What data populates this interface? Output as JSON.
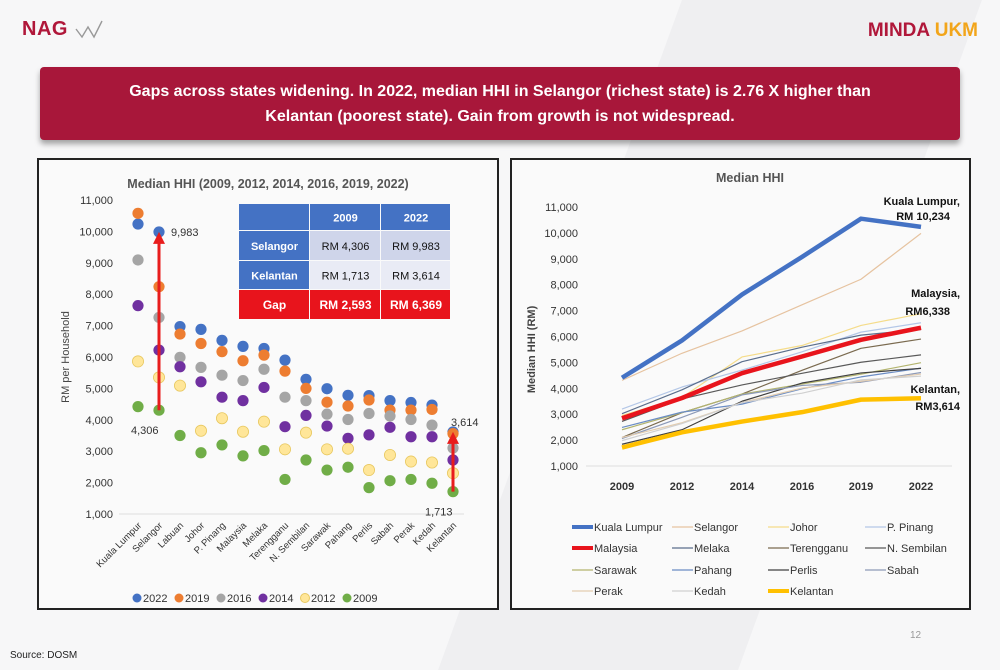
{
  "header": {
    "logo_left": "NAG",
    "logo_right_1": "MINDA",
    "logo_right_2": "UKM",
    "banner_text": "Gaps across states widening. In 2022, median HHI in Selangor (richest state) is 2.76 X higher than Kelantan (poorest state). Gain from growth is not widespread.",
    "banner_color": "#a8173a"
  },
  "footer": {
    "source": "Source: DOSM",
    "page_number": "12"
  },
  "chart_data": [
    {
      "type": "scatter",
      "title": "Median HHI (2009, 2012, 2014, 2016, 2019, 2022)",
      "ylabel": "RM per Household",
      "xlabel": "",
      "ylim": [
        1000,
        11000
      ],
      "yticks": [
        "1,000",
        "2,000",
        "3,000",
        "4,000",
        "5,000",
        "6,000",
        "7,000",
        "8,000",
        "9,000",
        "10,000",
        "11,000"
      ],
      "legend_position": "bottom",
      "categories": [
        "Kuala Lumpur",
        "Selangor",
        "Labuan",
        "Johor",
        "P. Pinang",
        "Malaysia",
        "Melaka",
        "Terengganu",
        "N. Sembilan",
        "Sarawak",
        "Pahang",
        "Perlis",
        "Sabah",
        "Perak",
        "Kedah",
        "Kelantan"
      ],
      "series": [
        {
          "name": "2022",
          "color": "#4472c4",
          "values": [
            10234,
            9983,
            6970,
            6880,
            6530,
            6338,
            6270,
            5900,
            5290,
            4990,
            4780,
            4770,
            4610,
            4550,
            4470,
            3614
          ]
        },
        {
          "name": "2019",
          "color": "#ed7d31",
          "values": [
            10575,
            8240,
            6730,
            6430,
            6170,
            5880,
            6060,
            5550,
            5000,
            4560,
            4440,
            4630,
            4310,
            4310,
            4330,
            3560
          ]
        },
        {
          "name": "2016",
          "color": "#a5a5a5",
          "values": [
            9090,
            7260,
            5990,
            5670,
            5420,
            5250,
            5610,
            4720,
            4610,
            4180,
            4010,
            4200,
            4120,
            4010,
            3830,
            3100
          ]
        },
        {
          "name": "2014",
          "color": "#7030a0",
          "values": [
            7635,
            6220,
            5690,
            5210,
            4720,
            4610,
            5030,
            3780,
            4140,
            3800,
            3410,
            3520,
            3760,
            3460,
            3460,
            2720
          ]
        },
        {
          "name": "2012",
          "color": "#ffe699",
          "values": [
            5860,
            5350,
            5090,
            3650,
            4050,
            3620,
            3940,
            3060,
            3590,
            3060,
            3080,
            2400,
            2880,
            2670,
            2640,
            2300
          ]
        },
        {
          "name": "2009",
          "color": "#70ad47",
          "values": [
            4420,
            4306,
            3500,
            2950,
            3200,
            2850,
            3020,
            2100,
            2720,
            2400,
            2490,
            1840,
            2060,
            2100,
            1980,
            1713
          ]
        }
      ],
      "annotations": [
        {
          "text": "9,983",
          "category": "Selangor",
          "value": 9983
        },
        {
          "text": "4,306",
          "category": "Selangor",
          "value": 4306
        },
        {
          "text": "3,614",
          "category": "Kelantan",
          "value": 3614
        },
        {
          "text": "1,713",
          "category": "Kelantan",
          "value": 1713
        }
      ],
      "arrows": [
        {
          "category": "Selangor",
          "from": 4306,
          "to": 9983,
          "color": "#e81c1c"
        },
        {
          "category": "Kelantan",
          "from": 1713,
          "to": 3614,
          "color": "#e81c1c"
        }
      ],
      "table": {
        "header": [
          "",
          "2009",
          "2022"
        ],
        "rows": [
          [
            "Selangor",
            "RM 4,306",
            "RM 9,983"
          ],
          [
            "Kelantan",
            "RM 1,713",
            "RM 3,614"
          ],
          [
            "Gap",
            "RM 2,593",
            "RM 6,369"
          ]
        ],
        "header_color": "#4472c4",
        "gap_color": "#e8141c"
      }
    },
    {
      "type": "line",
      "title": "Median HHI",
      "ylabel": "Median HHI (RM)",
      "xlabel": "",
      "ylim": [
        1000,
        11000
      ],
      "yticks": [
        "1,000",
        "2,000",
        "3,000",
        "4,000",
        "5,000",
        "6,000",
        "7,000",
        "8,000",
        "9,000",
        "10,000",
        "11,000"
      ],
      "x": [
        "2009",
        "2012",
        "2014",
        "2016",
        "2019",
        "2022"
      ],
      "legend_position": "bottom",
      "series": [
        {
          "name": "Kuala Lumpur",
          "color": "#4472c4",
          "highlight": true,
          "values": [
            4407,
            5847,
            7620,
            9073,
            10549,
            10234
          ]
        },
        {
          "name": "Selangor",
          "color": "#e6c3a0",
          "values": [
            4306,
            5353,
            6214,
            7225,
            8210,
            9983
          ]
        },
        {
          "name": "Johor",
          "color": "#f5dc8a",
          "values": [
            2950,
            3650,
            5210,
            5652,
            6427,
            6880
          ]
        },
        {
          "name": "P. Pinang",
          "color": "#b4c7e7",
          "values": [
            3200,
            4050,
            4702,
            5409,
            6169,
            6530
          ]
        },
        {
          "name": "Malaysia",
          "color": "#e8141c",
          "highlight": true,
          "values": [
            2841,
            3626,
            4585,
            5228,
            5873,
            6338
          ]
        },
        {
          "name": "Melaka",
          "color": "#5b6e8c",
          "values": [
            3020,
            3940,
            5029,
            5588,
            6054,
            6270
          ]
        },
        {
          "name": "Terengganu",
          "color": "#7a6a4f",
          "values": [
            2100,
            3060,
            3777,
            4694,
            5545,
            5900
          ]
        },
        {
          "name": "N. Sembilan",
          "color": "#595959",
          "values": [
            2720,
            3590,
            4129,
            4579,
            5005,
            5290
          ]
        },
        {
          "name": "Sarawak",
          "color": "#b3b46e",
          "values": [
            2400,
            3060,
            3778,
            4163,
            4544,
            4990
          ]
        },
        {
          "name": "Pahang",
          "color": "#6a8cc4",
          "values": [
            2490,
            3080,
            3389,
            3979,
            4440,
            4780
          ]
        },
        {
          "name": "Perlis",
          "color": "#404040",
          "values": [
            1840,
            2400,
            3500,
            4204,
            4594,
            4770
          ]
        },
        {
          "name": "Sabah",
          "color": "#8d9ab8",
          "values": [
            2060,
            2880,
            3745,
            4110,
            4235,
            4610
          ]
        },
        {
          "name": "Perak",
          "color": "#e3cdb0",
          "values": [
            2100,
            2670,
            3451,
            4006,
            4273,
            4550
          ]
        },
        {
          "name": "Kedah",
          "color": "#d0d0d0",
          "values": [
            1980,
            2640,
            3451,
            3811,
            4325,
            4470
          ]
        },
        {
          "name": "Kelantan",
          "color": "#ffc000",
          "highlight": true,
          "values": [
            1713,
            2300,
            2716,
            3079,
            3563,
            3614
          ]
        }
      ],
      "annotations": [
        {
          "line1": "Kuala Lumpur,",
          "line2": "RM 10,234",
          "series": "Kuala Lumpur"
        },
        {
          "line1": "Malaysia,",
          "line2": "RM6,338",
          "series": "Malaysia"
        },
        {
          "line1": "Kelantan,",
          "line2": "RM3,614",
          "series": "Kelantan"
        }
      ]
    }
  ]
}
